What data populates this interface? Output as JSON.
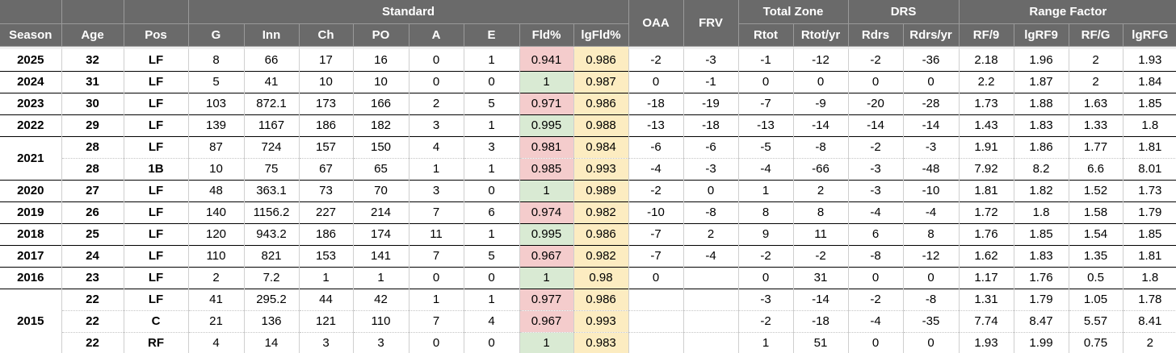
{
  "table": {
    "groups": {
      "standard": "Standard",
      "total_zone": "Total Zone",
      "drs": "DRS",
      "range_factor": "Range Factor"
    },
    "columns": [
      "Season",
      "Age",
      "Pos",
      "G",
      "Inn",
      "Ch",
      "PO",
      "A",
      "E",
      "Fld%",
      "lgFld%",
      "OAA",
      "FRV",
      "Rtot",
      "Rtot/yr",
      "Rdrs",
      "Rdrs/yr",
      "RF/9",
      "lgRF9",
      "RF/G",
      "lgRFG"
    ],
    "column_keys": [
      "g",
      "inn",
      "ch",
      "po",
      "a",
      "e",
      "fld-pct",
      "lg-fld-pct",
      "oaa",
      "frv",
      "rtot",
      "rtot-yr",
      "rdrs",
      "rdrs-yr",
      "rf9",
      "lgrf9",
      "rfg",
      "lgrfg"
    ],
    "seasons": [
      {
        "year": "2025",
        "rows": [
          {
            "age": "32",
            "pos": "LF",
            "fld": "red",
            "cells": [
              "8",
              "66",
              "17",
              "16",
              "0",
              "1",
              "0.941",
              "0.986",
              "-2",
              "-3",
              "-1",
              "-12",
              "-2",
              "-36",
              "2.18",
              "1.96",
              "2",
              "1.93"
            ]
          }
        ]
      },
      {
        "year": "2024",
        "rows": [
          {
            "age": "31",
            "pos": "LF",
            "fld": "green",
            "cells": [
              "5",
              "41",
              "10",
              "10",
              "0",
              "0",
              "1",
              "0.987",
              "0",
              "-1",
              "0",
              "0",
              "0",
              "0",
              "2.2",
              "1.87",
              "2",
              "1.84"
            ]
          }
        ]
      },
      {
        "year": "2023",
        "rows": [
          {
            "age": "30",
            "pos": "LF",
            "fld": "red",
            "cells": [
              "103",
              "872.1",
              "173",
              "166",
              "2",
              "5",
              "0.971",
              "0.986",
              "-18",
              "-19",
              "-7",
              "-9",
              "-20",
              "-28",
              "1.73",
              "1.88",
              "1.63",
              "1.85"
            ]
          }
        ]
      },
      {
        "year": "2022",
        "rows": [
          {
            "age": "29",
            "pos": "LF",
            "fld": "green",
            "cells": [
              "139",
              "1167",
              "186",
              "182",
              "3",
              "1",
              "0.995",
              "0.988",
              "-13",
              "-18",
              "-13",
              "-14",
              "-14",
              "-14",
              "1.43",
              "1.83",
              "1.33",
              "1.8"
            ]
          }
        ]
      },
      {
        "year": "2021",
        "rows": [
          {
            "age": "28",
            "pos": "LF",
            "fld": "red",
            "cells": [
              "87",
              "724",
              "157",
              "150",
              "4",
              "3",
              "0.981",
              "0.984",
              "-6",
              "-6",
              "-5",
              "-8",
              "-2",
              "-3",
              "1.91",
              "1.86",
              "1.77",
              "1.81"
            ]
          },
          {
            "age": "28",
            "pos": "1B",
            "fld": "red",
            "cells": [
              "10",
              "75",
              "67",
              "65",
              "1",
              "1",
              "0.985",
              "0.993",
              "-4",
              "-3",
              "-4",
              "-66",
              "-3",
              "-48",
              "7.92",
              "8.2",
              "6.6",
              "8.01"
            ]
          }
        ]
      },
      {
        "year": "2020",
        "rows": [
          {
            "age": "27",
            "pos": "LF",
            "fld": "green",
            "cells": [
              "48",
              "363.1",
              "73",
              "70",
              "3",
              "0",
              "1",
              "0.989",
              "-2",
              "0",
              "1",
              "2",
              "-3",
              "-10",
              "1.81",
              "1.82",
              "1.52",
              "1.73"
            ]
          }
        ]
      },
      {
        "year": "2019",
        "rows": [
          {
            "age": "26",
            "pos": "LF",
            "fld": "red",
            "cells": [
              "140",
              "1156.2",
              "227",
              "214",
              "7",
              "6",
              "0.974",
              "0.982",
              "-10",
              "-8",
              "8",
              "8",
              "-4",
              "-4",
              "1.72",
              "1.8",
              "1.58",
              "1.79"
            ]
          }
        ]
      },
      {
        "year": "2018",
        "rows": [
          {
            "age": "25",
            "pos": "LF",
            "fld": "green",
            "cells": [
              "120",
              "943.2",
              "186",
              "174",
              "11",
              "1",
              "0.995",
              "0.986",
              "-7",
              "2",
              "9",
              "11",
              "6",
              "8",
              "1.76",
              "1.85",
              "1.54",
              "1.85"
            ]
          }
        ]
      },
      {
        "year": "2017",
        "rows": [
          {
            "age": "24",
            "pos": "LF",
            "fld": "red",
            "cells": [
              "110",
              "821",
              "153",
              "141",
              "7",
              "5",
              "0.967",
              "0.982",
              "-7",
              "-4",
              "-2",
              "-2",
              "-8",
              "-12",
              "1.62",
              "1.83",
              "1.35",
              "1.81"
            ]
          }
        ]
      },
      {
        "year": "2016",
        "rows": [
          {
            "age": "23",
            "pos": "LF",
            "fld": "green",
            "cells": [
              "2",
              "7.2",
              "1",
              "1",
              "0",
              "0",
              "1",
              "0.98",
              "0",
              "",
              "0",
              "31",
              "0",
              "0",
              "1.17",
              "1.76",
              "0.5",
              "1.8"
            ]
          }
        ]
      },
      {
        "year": "2015",
        "rows": [
          {
            "age": "22",
            "pos": "LF",
            "fld": "red",
            "cells": [
              "41",
              "295.2",
              "44",
              "42",
              "1",
              "1",
              "0.977",
              "0.986",
              "",
              "",
              "-3",
              "-14",
              "-2",
              "-8",
              "1.31",
              "1.79",
              "1.05",
              "1.78"
            ]
          },
          {
            "age": "22",
            "pos": "C",
            "fld": "red",
            "cells": [
              "21",
              "136",
              "121",
              "110",
              "7",
              "4",
              "0.967",
              "0.993",
              "",
              "",
              "-2",
              "-18",
              "-4",
              "-35",
              "7.74",
              "8.47",
              "5.57",
              "8.41"
            ]
          },
          {
            "age": "22",
            "pos": "RF",
            "fld": "green",
            "cells": [
              "4",
              "14",
              "3",
              "3",
              "0",
              "0",
              "1",
              "0.983",
              "",
              "",
              "1",
              "51",
              "0",
              "0",
              "1.93",
              "1.99",
              "0.75",
              "2"
            ]
          }
        ]
      }
    ]
  },
  "colors": {
    "header_bg": "#6a6a6a",
    "header_text": "#ffffff",
    "fld_good": "#d9ead3",
    "fld_bad": "#f4cccc",
    "lg_fld": "#fcecc1",
    "grid": "#cfcfcf",
    "group_line": "#000000"
  }
}
